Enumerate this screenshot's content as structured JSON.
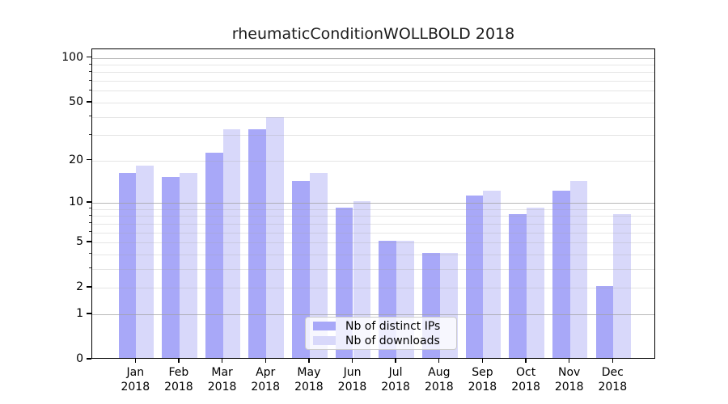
{
  "chart_data": {
    "type": "bar",
    "title": "rheumaticConditionWOLLBOLD 2018",
    "categories": [
      "Jan",
      "Feb",
      "Mar",
      "Apr",
      "May",
      "Jun",
      "Jul",
      "Aug",
      "Sep",
      "Oct",
      "Nov",
      "Dec"
    ],
    "x_tick_line2": "2018",
    "series": [
      {
        "name": "Nb of distinct IPs",
        "color": "#a8a8f8",
        "values": [
          16,
          15,
          22,
          32,
          14,
          9,
          5,
          4,
          11,
          8,
          12,
          2
        ]
      },
      {
        "name": "Nb of downloads",
        "color": "#d8d8fa",
        "values": [
          18,
          16,
          32,
          39,
          16,
          10,
          5,
          4,
          12,
          9,
          14,
          8
        ]
      }
    ],
    "xlabel": "",
    "ylabel": "",
    "y_scale": "log10(1+x)",
    "ylim": [
      0,
      112
    ],
    "y_ticks_labeled": [
      100,
      50,
      20,
      10,
      5,
      2,
      1,
      0
    ],
    "y_gridlines_major": [
      1,
      10,
      100
    ],
    "y_gridlines_minor": [
      2,
      3,
      4,
      5,
      6,
      7,
      8,
      9,
      20,
      30,
      40,
      50,
      60,
      70,
      80,
      90
    ],
    "grid": true,
    "legend_position": "lower center (inside plot)",
    "colors": {
      "axis": "#000000",
      "major_grid": "#c8c8c8",
      "minor_grid": "#e8e8e8",
      "legend_border": "#cccccc",
      "background": "#ffffff"
    }
  }
}
